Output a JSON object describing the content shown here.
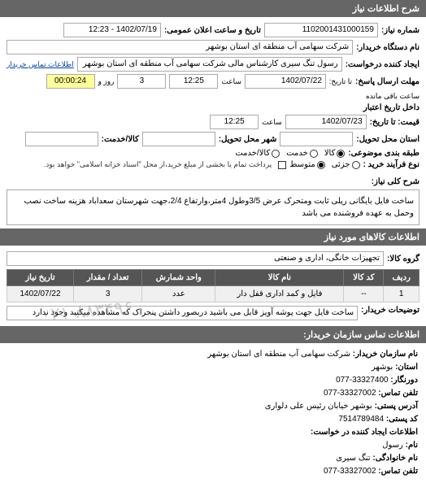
{
  "sections": {
    "info_title": "شرح اطلاعات نیاز",
    "goods_title": "اطلاعات کالاهای مورد نیاز",
    "contact_title": "اطلاعات تماس سازمان خریدار:"
  },
  "header": {
    "req_number_lbl": "شماره نیاز:",
    "req_number": "1102001431000159",
    "announce_lbl": "تاریخ و ساعت اعلان عمومی:",
    "announce_val": "1402/07/19 - 12:23",
    "buyer_name_lbl": "نام دستگاه خریدار:",
    "buyer_name": "شرکت سهامی آب منطقه ای استان بوشهر",
    "creator_lbl": "ایجاد کننده درخواست:",
    "creator": "رسول تنگ سیری کارشناس مالی شرکت سهامی آب منطقه ای استان بوشهر",
    "contact_link": "اطلاعات تماس خریدار"
  },
  "deadlines": {
    "send_lbl": "مهلت ارسال پاسخ:",
    "ta1": "تا تاریخ:",
    "send_date": "1402/07/22",
    "time_lbl": "ساعت",
    "send_time": "12:25",
    "remain_day": "3",
    "day_lbl": "روز و",
    "remain_time": "00:00:24",
    "remain_lbl": "ساعت باقی مانده",
    "valid_lbl": "داخل تاریخ اعتبار",
    "quote_lbl": "قیمت: تا تاریخ:",
    "quote_date": "1402/07/23",
    "quote_time": "12:25"
  },
  "delivery": {
    "place_lbl": "استان محل تحویل:",
    "place_val": "",
    "city_lbl": "شهر محل تحویل:",
    "city_val": "",
    "amount_lbl": "کالا/خدمت:",
    "amount_val": ""
  },
  "budget": {
    "cat_lbl": "طبقه بندی موضوعی:",
    "opt_goods": "کالا",
    "opt_service": "خدمت",
    "opt_both": "کالا/خدمت",
    "process_lbl": "نوع فرآیند خرید :",
    "opt_low": "جزئی",
    "opt_med": "متوسط",
    "prepay_note": "پرداخت تمام یا بخشی از مبلغ خرید،از محل \"اسناد خزانه اسلامی\" خواهد بود."
  },
  "desc": {
    "lbl": "شرح کلی نیاز:",
    "text": "ساخت فایل بایگانی ریلی ثابت ومتحرک عرض 3/5وطول 4متر،وارتفاع 2/4،جهت شهرستان سعداباد هزینه ساخت نصب وحمل به عهده فروشنده می باشد"
  },
  "goods": {
    "group_lbl": "گروه کالا:",
    "group_val": "تجهیزات خانگی، اداری و صنعتی"
  },
  "table": {
    "cols": [
      "ردیف",
      "کد کالا",
      "نام کالا",
      "واحد شمارش",
      "تعداد / مقدار",
      "تاریخ نیاز"
    ],
    "rows": [
      [
        "1",
        "--",
        "فایل و کمد اداری قفل دار",
        "عدد",
        "3",
        "1402/07/22"
      ]
    ]
  },
  "buyer_note": {
    "lbl": "توضیحات خریدار:",
    "text": "ساخت فایل جهت پوشه آویز قابل می باشید دربصور داشتن پنجراک که مشاهده میکنید وجود ندارد"
  },
  "contact": {
    "org_lbl": "نام سازمان خریدار:",
    "org": "شرکت سهامی آب منطقه ای استان بوشهر",
    "prov_lbl": "استان:",
    "prov": "بوشهر",
    "fax_lbl": "دورنگار:",
    "fax": "33327400-077",
    "tel_lbl": "تلفن تماس:",
    "tel": "33327002-077",
    "addr_lbl": "آدرس پستی:",
    "addr": "بوشهر خیابان رئیس علی دلواری",
    "zip_lbl": "کد پستی:",
    "zip": "7514789484",
    "creator_info_lbl": "اطلاعات ایجاد کننده در خواست:",
    "name_lbl": "نام:",
    "name": "رسول",
    "family_lbl": "نام خانوادگی:",
    "family": "تنگ سیری",
    "ctel_lbl": "تلفن تماس:",
    "ctel": "33327002-077"
  },
  "watermark": "۰۲۱-۸۸۳۴۹۶"
}
